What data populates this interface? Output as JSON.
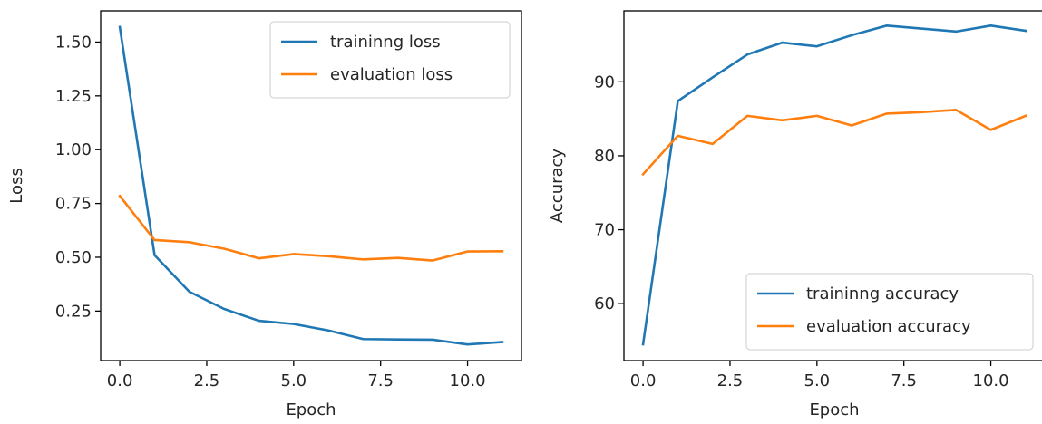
{
  "chart_data": [
    {
      "type": "line",
      "title": "",
      "xlabel": "Epoch",
      "ylabel": "Loss",
      "xlim": [
        -0.55,
        11.55
      ],
      "ylim": [
        0.02,
        1.645
      ],
      "xticks": [
        0.0,
        2.5,
        5.0,
        7.5,
        10.0
      ],
      "xtick_labels": [
        "0.0",
        "2.5",
        "5.0",
        "7.5",
        "10.0"
      ],
      "yticks": [
        0.25,
        0.5,
        0.75,
        1.0,
        1.25,
        1.5
      ],
      "ytick_labels": [
        "0.25",
        "0.50",
        "0.75",
        "1.00",
        "1.25",
        "1.50"
      ],
      "grid": false,
      "legend_loc": "upper right",
      "x": [
        0,
        1,
        2,
        3,
        4,
        5,
        6,
        7,
        8,
        9,
        10,
        11
      ],
      "series": [
        {
          "name": "traininng loss",
          "color": "#1f77b4",
          "values": [
            1.57,
            0.51,
            0.34,
            0.26,
            0.205,
            0.19,
            0.16,
            0.12,
            0.118,
            0.117,
            0.095,
            0.106
          ]
        },
        {
          "name": "evaluation loss",
          "color": "#ff7f0e",
          "values": [
            0.785,
            0.58,
            0.57,
            0.54,
            0.495,
            0.515,
            0.505,
            0.49,
            0.497,
            0.485,
            0.527,
            0.528
          ]
        }
      ]
    },
    {
      "type": "line",
      "title": "",
      "xlabel": "Epoch",
      "ylabel": "Accuracy",
      "xlim": [
        -0.55,
        11.55
      ],
      "ylim": [
        52.3,
        99.6
      ],
      "xticks": [
        0.0,
        2.5,
        5.0,
        7.5,
        10.0
      ],
      "xtick_labels": [
        "0.0",
        "2.5",
        "5.0",
        "7.5",
        "10.0"
      ],
      "yticks": [
        60,
        70,
        80,
        90
      ],
      "ytick_labels": [
        "60",
        "70",
        "80",
        "90"
      ],
      "grid": false,
      "legend_loc": "lower right",
      "x": [
        0,
        1,
        2,
        3,
        4,
        5,
        6,
        7,
        8,
        9,
        10,
        11
      ],
      "series": [
        {
          "name": "traininng accuracy",
          "color": "#1f77b4",
          "values": [
            54.5,
            87.4,
            90.6,
            93.7,
            95.3,
            94.8,
            96.3,
            97.6,
            97.2,
            96.8,
            97.6,
            96.9
          ]
        },
        {
          "name": "evaluation accuracy",
          "color": "#ff7f0e",
          "values": [
            77.5,
            82.7,
            81.6,
            85.4,
            84.8,
            85.4,
            84.1,
            85.7,
            85.9,
            86.2,
            83.5,
            85.4
          ]
        }
      ]
    }
  ]
}
